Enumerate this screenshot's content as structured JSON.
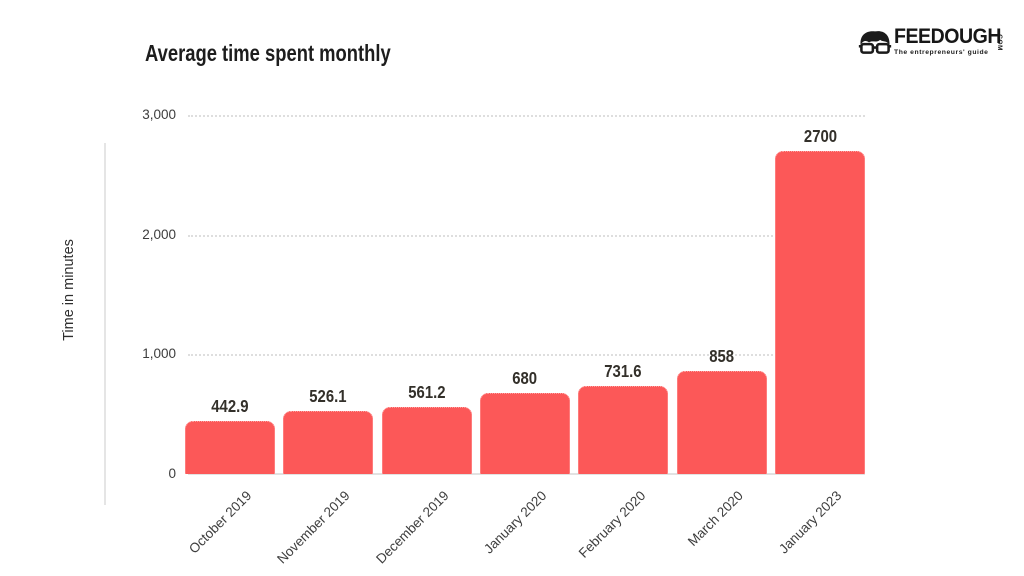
{
  "header": {
    "title": "Average time spent monthly"
  },
  "logo": {
    "brand": "FEEDOUGH",
    "tld": ".COM",
    "tagline": "The entrepreneurs' guide",
    "icon": "nerd-face-glasses-icon",
    "color": "#171717"
  },
  "chart_data": {
    "type": "bar",
    "title": "Average time spent monthly",
    "xlabel": "",
    "ylabel": "Time in minutes",
    "categories": [
      "October 2019",
      "November 2019",
      "December 2019",
      "January 2020",
      "February 2020",
      "March 2020",
      "January 2023"
    ],
    "values": [
      442.9,
      526.1,
      561.2,
      680,
      731.6,
      858,
      2700
    ],
    "value_labels": [
      "442.9",
      "526.1",
      "561.2",
      "680",
      "731.6",
      "858",
      "2700"
    ],
    "ylim": [
      0,
      3000
    ],
    "yticks": [
      {
        "value": 3000,
        "label": "3,000"
      },
      {
        "value": 2000,
        "label": "2,000"
      },
      {
        "value": 1000,
        "label": "1,000"
      },
      {
        "value": 0,
        "label": "0"
      }
    ],
    "grid": "horizontal-dotted",
    "legend": "none",
    "x_tick_rotation_deg": -45,
    "bar_color": "#fc5858",
    "bar_edge_color": "#ff9e9e",
    "gridline_color": "#dedede",
    "value_label_color": "#33302a",
    "tick_label_color": "#3d3d3d"
  }
}
